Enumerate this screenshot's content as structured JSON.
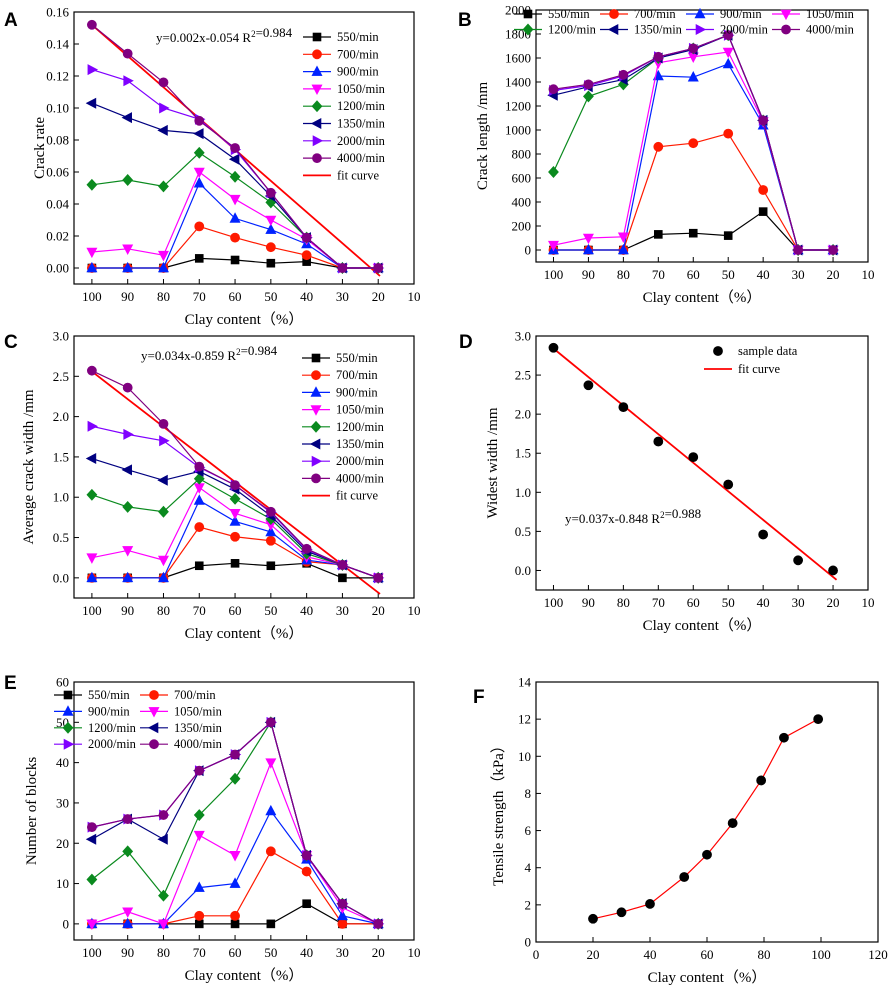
{
  "chart_data": [
    {
      "panel": "A",
      "type": "line",
      "xlabel": "Clay content（%）",
      "ylabel": "Crack rate",
      "xlim": [
        105,
        10
      ],
      "ylim": [
        -0.01,
        0.16
      ],
      "xticks": [
        "100",
        "90",
        "80",
        "70",
        "60",
        "50",
        "40",
        "30",
        "20",
        "10"
      ],
      "yticks": [
        "0.00",
        "0.02",
        "0.04",
        "0.06",
        "0.08",
        "0.10",
        "0.12",
        "0.14",
        "0.16"
      ],
      "annotation": {
        "text": "y=0.002x-0.054   R²=0.984"
      },
      "legend_cols": 1,
      "legend_position": "top-right",
      "x": [
        100,
        90,
        80,
        70,
        60,
        50,
        40,
        30,
        20
      ],
      "series": [
        {
          "name": "550/min",
          "color": "#000000",
          "marker": "square",
          "values": [
            0,
            0,
            0,
            0.006,
            0.005,
            0.003,
            0.004,
            0,
            0
          ]
        },
        {
          "name": "700/min",
          "color": "#ff1a00",
          "marker": "circle",
          "values": [
            0,
            0,
            0,
            0.026,
            0.019,
            0.013,
            0.008,
            0,
            0
          ]
        },
        {
          "name": "900/min",
          "color": "#0022ff",
          "marker": "triangle-up",
          "values": [
            0,
            0,
            0,
            0.053,
            0.031,
            0.024,
            0.015,
            0,
            0
          ]
        },
        {
          "name": "1050/min",
          "color": "#ff00ff",
          "marker": "triangle-down",
          "values": [
            0.01,
            0.012,
            0.008,
            0.06,
            0.043,
            0.03,
            0.018,
            0,
            0
          ]
        },
        {
          "name": "1200/min",
          "color": "#0a8a1e",
          "marker": "diamond",
          "values": [
            0.052,
            0.055,
            0.051,
            0.072,
            0.057,
            0.041,
            0.019,
            0,
            0
          ]
        },
        {
          "name": "1350/min",
          "color": "#000080",
          "marker": "triangle-left",
          "values": [
            0.103,
            0.094,
            0.086,
            0.084,
            0.068,
            0.045,
            0.019,
            0,
            0
          ]
        },
        {
          "name": "2000/min",
          "color": "#8000ff",
          "marker": "triangle-right",
          "values": [
            0.124,
            0.117,
            0.1,
            0.093,
            0.074,
            0.047,
            0.019,
            0,
            0
          ]
        },
        {
          "name": "4000/min",
          "color": "#800080",
          "marker": "circle",
          "values": [
            0.152,
            0.134,
            0.116,
            0.092,
            0.075,
            0.047,
            0.019,
            0,
            0
          ]
        }
      ],
      "fit": {
        "name": "fit curve",
        "color": "#ff0000",
        "x": [
          100,
          19.5
        ],
        "y": [
          0.152,
          -0.005
        ]
      }
    },
    {
      "panel": "B",
      "type": "line",
      "xlabel": "Clay content（%）",
      "ylabel": "Crack length /mm",
      "xlim": [
        105,
        10
      ],
      "ylim": [
        -100,
        2000
      ],
      "xticks": [
        "100",
        "90",
        "80",
        "70",
        "60",
        "50",
        "40",
        "30",
        "20",
        "10"
      ],
      "yticks": [
        "0",
        "200",
        "400",
        "600",
        "800",
        "1000",
        "1200",
        "1400",
        "1600",
        "1800",
        "2000"
      ],
      "legend_cols": 4,
      "legend_position": "top",
      "x": [
        100,
        90,
        80,
        70,
        60,
        50,
        40,
        30,
        20
      ],
      "series": [
        {
          "name": "550/min",
          "color": "#000000",
          "marker": "square",
          "values": [
            0,
            0,
            0,
            130,
            140,
            120,
            320,
            0,
            0
          ]
        },
        {
          "name": "700/min",
          "color": "#ff1a00",
          "marker": "circle",
          "values": [
            0,
            0,
            0,
            860,
            890,
            970,
            500,
            0,
            0
          ]
        },
        {
          "name": "900/min",
          "color": "#0022ff",
          "marker": "triangle-up",
          "values": [
            0,
            0,
            0,
            1450,
            1440,
            1550,
            1040,
            0,
            0
          ]
        },
        {
          "name": "1050/min",
          "color": "#ff00ff",
          "marker": "triangle-down",
          "values": [
            40,
            100,
            110,
            1560,
            1610,
            1650,
            1070,
            0,
            0
          ]
        },
        {
          "name": "1200/min",
          "color": "#0a8a1e",
          "marker": "diamond",
          "values": [
            650,
            1280,
            1380,
            1600,
            1680,
            1790,
            1080,
            0,
            0
          ]
        },
        {
          "name": "1350/min",
          "color": "#000080",
          "marker": "triangle-left",
          "values": [
            1290,
            1360,
            1420,
            1600,
            1670,
            1790,
            1080,
            0,
            0
          ]
        },
        {
          "name": "2000/min",
          "color": "#8000ff",
          "marker": "triangle-right",
          "values": [
            1330,
            1370,
            1450,
            1610,
            1680,
            1790,
            1080,
            0,
            0
          ]
        },
        {
          "name": "4000/min",
          "color": "#800080",
          "marker": "circle",
          "values": [
            1340,
            1380,
            1460,
            1610,
            1680,
            1790,
            1080,
            0,
            0
          ]
        }
      ]
    },
    {
      "panel": "C",
      "type": "line",
      "xlabel": "Clay content（%）",
      "ylabel": "Average crack width /mm",
      "xlim": [
        105,
        10
      ],
      "ylim": [
        -0.25,
        3.0
      ],
      "xticks": [
        "100",
        "90",
        "80",
        "70",
        "60",
        "50",
        "40",
        "30",
        "20",
        "10"
      ],
      "yticks": [
        "0.0",
        "0.5",
        "1.0",
        "1.5",
        "2.0",
        "2.5",
        "3.0"
      ],
      "annotation": {
        "text": "y=0.034x-0.859   R²=0.984"
      },
      "legend_cols": 1,
      "legend_position": "top-right",
      "x": [
        100,
        90,
        80,
        70,
        60,
        50,
        40,
        30,
        20
      ],
      "series": [
        {
          "name": "550/min",
          "color": "#000000",
          "marker": "square",
          "values": [
            0,
            0,
            0,
            0.15,
            0.18,
            0.15,
            0.18,
            0,
            0
          ]
        },
        {
          "name": "700/min",
          "color": "#ff1a00",
          "marker": "circle",
          "values": [
            0,
            0,
            0,
            0.63,
            0.51,
            0.46,
            0.2,
            0.16,
            0
          ]
        },
        {
          "name": "900/min",
          "color": "#0022ff",
          "marker": "triangle-up",
          "values": [
            0,
            0,
            0,
            0.96,
            0.7,
            0.57,
            0.22,
            0.16,
            0
          ]
        },
        {
          "name": "1050/min",
          "color": "#ff00ff",
          "marker": "triangle-down",
          "values": [
            0.25,
            0.34,
            0.22,
            1.12,
            0.8,
            0.66,
            0.26,
            0.16,
            0
          ]
        },
        {
          "name": "1200/min",
          "color": "#0a8a1e",
          "marker": "diamond",
          "values": [
            1.03,
            0.88,
            0.82,
            1.23,
            0.98,
            0.73,
            0.3,
            0.16,
            0
          ]
        },
        {
          "name": "1350/min",
          "color": "#000080",
          "marker": "triangle-left",
          "values": [
            1.48,
            1.34,
            1.21,
            1.32,
            1.1,
            0.77,
            0.33,
            0.16,
            0
          ]
        },
        {
          "name": "2000/min",
          "color": "#8000ff",
          "marker": "triangle-right",
          "values": [
            1.88,
            1.78,
            1.7,
            1.37,
            1.15,
            0.81,
            0.35,
            0.16,
            0
          ]
        },
        {
          "name": "4000/min",
          "color": "#800080",
          "marker": "circle",
          "values": [
            2.57,
            2.36,
            1.91,
            1.38,
            1.15,
            0.82,
            0.36,
            0.16,
            0
          ]
        }
      ],
      "fit": {
        "name": "fit curve",
        "color": "#ff0000",
        "x": [
          100,
          19.5
        ],
        "y": [
          2.56,
          -0.2
        ]
      }
    },
    {
      "panel": "D",
      "type": "scatter",
      "xlabel": "Clay content（%）",
      "ylabel": "Widest width /mm",
      "xlim": [
        105,
        10
      ],
      "ylim": [
        -0.25,
        3.0
      ],
      "xticks": [
        "100",
        "90",
        "80",
        "70",
        "60",
        "50",
        "40",
        "30",
        "20",
        "10"
      ],
      "yticks": [
        "0.0",
        "0.5",
        "1.0",
        "1.5",
        "2.0",
        "2.5",
        "3.0"
      ],
      "annotation": {
        "text": "y=0.037x-0.848   R²=0.988"
      },
      "legend_position": "top-right",
      "x": [
        100,
        90,
        80,
        70,
        60,
        50,
        40,
        30,
        20
      ],
      "series": [
        {
          "name": "sample data",
          "color": "#000000",
          "marker": "circle",
          "values": [
            2.85,
            2.37,
            2.09,
            1.65,
            1.45,
            1.1,
            0.46,
            0.13,
            0
          ]
        }
      ],
      "fit": {
        "name": "fit   curve",
        "color": "#ff0000",
        "x": [
          100,
          19
        ],
        "y": [
          2.84,
          -0.12
        ]
      }
    },
    {
      "panel": "E",
      "type": "line",
      "xlabel": "Clay content（%）",
      "ylabel": "Number of blocks",
      "xlim": [
        105,
        10
      ],
      "ylim": [
        -4,
        60
      ],
      "xticks": [
        "100",
        "90",
        "80",
        "70",
        "60",
        "50",
        "40",
        "30",
        "20",
        "10"
      ],
      "yticks": [
        "0",
        "10",
        "20",
        "30",
        "40",
        "50",
        "60"
      ],
      "legend_cols": 2,
      "legend_position": "top-left",
      "x": [
        100,
        90,
        80,
        70,
        60,
        50,
        40,
        30,
        20
      ],
      "series": [
        {
          "name": "550/min",
          "color": "#000000",
          "marker": "square",
          "values": [
            0,
            0,
            0,
            0,
            0,
            0,
            5,
            0,
            0
          ]
        },
        {
          "name": "700/min",
          "color": "#ff1a00",
          "marker": "circle",
          "values": [
            0,
            0,
            0,
            2,
            2,
            18,
            13,
            0,
            0
          ]
        },
        {
          "name": "900/min",
          "color": "#0022ff",
          "marker": "triangle-up",
          "values": [
            0,
            0,
            0,
            9,
            10,
            28,
            16,
            2,
            0
          ]
        },
        {
          "name": "1050/min",
          "color": "#ff00ff",
          "marker": "triangle-down",
          "values": [
            0,
            3,
            0,
            22,
            17,
            40,
            17,
            4,
            0
          ]
        },
        {
          "name": "1200/min",
          "color": "#0a8a1e",
          "marker": "diamond",
          "values": [
            11,
            18,
            7,
            27,
            36,
            50,
            17,
            5,
            0
          ]
        },
        {
          "name": "1350/min",
          "color": "#000080",
          "marker": "triangle-left",
          "values": [
            21,
            26,
            21,
            38,
            42,
            50,
            17,
            5,
            0
          ]
        },
        {
          "name": "2000/min",
          "color": "#8000ff",
          "marker": "triangle-right",
          "values": [
            24,
            26,
            27,
            38,
            42,
            50,
            17,
            5,
            0
          ]
        },
        {
          "name": "4000/min",
          "color": "#800080",
          "marker": "circle",
          "values": [
            24,
            26,
            27,
            38,
            42,
            50,
            17,
            5,
            0
          ]
        }
      ]
    },
    {
      "panel": "F",
      "type": "line",
      "xlabel": "Clay content（%）",
      "ylabel": "Tensile strength（kPa）",
      "xlim": [
        0,
        120
      ],
      "ylim": [
        0,
        14
      ],
      "xticks": [
        "0",
        "20",
        "40",
        "60",
        "80",
        "100",
        "120"
      ],
      "yticks": [
        "0",
        "2",
        "4",
        "6",
        "8",
        "10",
        "12",
        "14"
      ],
      "series": [
        {
          "name": "tensile strength",
          "color": "#000000",
          "line_color": "#ff0000",
          "marker": "circle",
          "x": [
            20,
            30,
            40,
            52,
            60,
            69,
            79,
            87,
            99
          ],
          "values": [
            1.25,
            1.6,
            2.05,
            3.5,
            4.7,
            6.4,
            8.7,
            11.0,
            12.0
          ]
        }
      ]
    }
  ]
}
